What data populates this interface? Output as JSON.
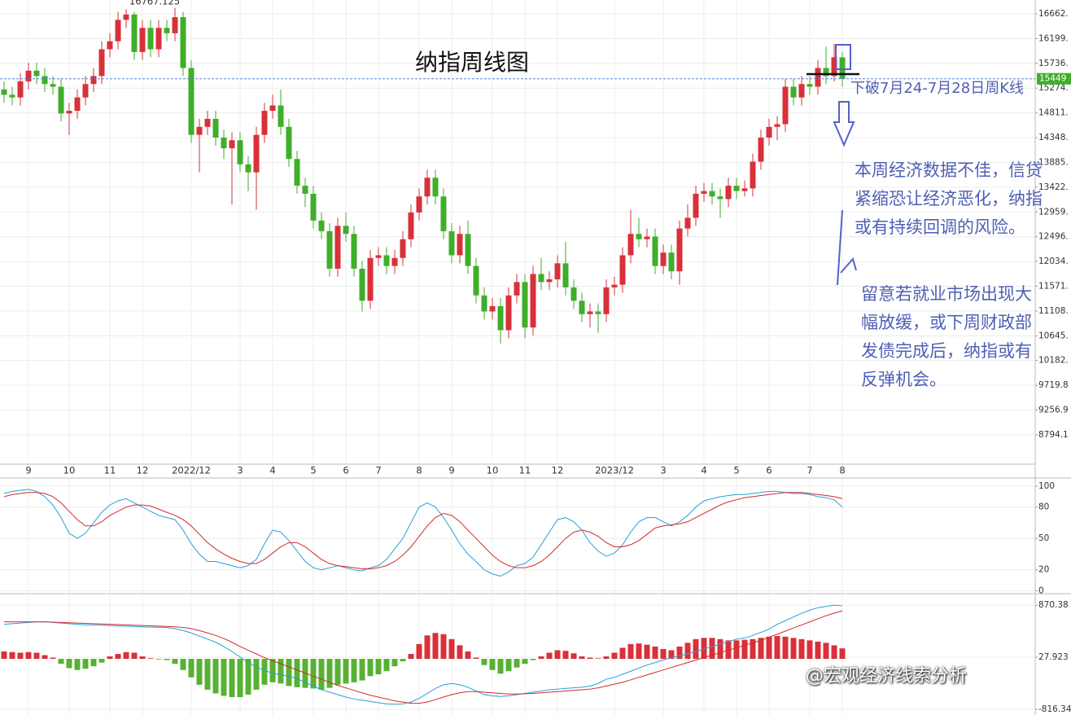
{
  "chart_data": [
    {
      "type": "candlestick",
      "title": "纳指周线图",
      "categories": [
        null,
        null,
        null,
        "9",
        null,
        null,
        null,
        null,
        "10",
        null,
        null,
        null,
        null,
        "11",
        null,
        null,
        null,
        "12",
        null,
        null,
        null,
        null,
        null,
        "2022/12",
        null,
        null,
        null,
        null,
        null,
        "3",
        null,
        null,
        null,
        "4",
        null,
        null,
        null,
        null,
        "5",
        null,
        null,
        null,
        "6",
        null,
        null,
        null,
        "7",
        null,
        null,
        null,
        null,
        "8",
        null,
        null,
        null,
        "9",
        null,
        null,
        null,
        null,
        "10",
        null,
        null,
        null,
        "11",
        null,
        null,
        null,
        "12",
        null,
        null,
        null,
        null,
        null,
        null,
        "2023/12",
        null,
        null,
        null,
        null,
        null,
        "3",
        null,
        null,
        null,
        null,
        "4",
        null,
        null,
        null,
        "5",
        null,
        null,
        null,
        "6",
        null,
        null,
        null,
        null,
        "7",
        null,
        null,
        null,
        "8"
      ],
      "open": [
        15250,
        15150,
        15100,
        15400,
        15600,
        15500,
        15350,
        15300,
        14800,
        14850,
        15100,
        15350,
        15500,
        16000,
        16150,
        16550,
        16650,
        15950,
        16400,
        16000,
        16400,
        16300,
        16600,
        15650,
        14400,
        14550,
        14700,
        14350,
        14150,
        14300,
        13850,
        13700,
        14400,
        14850,
        14950,
        14550,
        13950,
        13450,
        13300,
        12800,
        12600,
        11900,
        12700,
        12550,
        11900,
        11300,
        12100,
        12150,
        11950,
        12100,
        12450,
        12950,
        13250,
        13600,
        13250,
        12600,
        12150,
        12550,
        11950,
        11400,
        11100,
        11200,
        10750,
        11400,
        11650,
        10800,
        11800,
        11650,
        11700,
        12000,
        11550,
        11300,
        11050,
        11100,
        11050,
        11550,
        11600,
        12150,
        12550,
        12450,
        12500,
        11950,
        12200,
        11850,
        12650,
        12850,
        13300,
        13350,
        13250,
        13200,
        13450,
        13350,
        13400,
        13900,
        14350,
        14550,
        14600,
        15300,
        15100,
        15350,
        15300,
        15650,
        15500,
        15850
      ],
      "high": [
        15400,
        15300,
        15550,
        15750,
        15750,
        15650,
        15500,
        15450,
        15000,
        15250,
        15500,
        15650,
        16150,
        16300,
        16700,
        16750,
        16700,
        16550,
        16550,
        16550,
        16550,
        16767.125,
        16700,
        15800,
        14700,
        14850,
        14850,
        14500,
        14450,
        14450,
        14000,
        14550,
        15000,
        15150,
        15250,
        14700,
        14100,
        13600,
        13450,
        12950,
        12750,
        12850,
        12950,
        12700,
        12050,
        12250,
        12300,
        12300,
        12250,
        12600,
        13100,
        13400,
        13750,
        13750,
        13400,
        12750,
        12700,
        12800,
        12100,
        11550,
        11350,
        11350,
        11550,
        11800,
        11800,
        11950,
        12100,
        11850,
        12150,
        12400,
        11700,
        11450,
        11250,
        11250,
        11700,
        11750,
        12300,
        13000,
        12850,
        12650,
        12650,
        12350,
        12350,
        12800,
        13100,
        13450,
        13500,
        13500,
        13400,
        13600,
        13600,
        13550,
        14050,
        14500,
        14700,
        14750,
        15450,
        15450,
        15500,
        15500,
        15800,
        16050,
        16100,
        15950
      ],
      "low": [
        15000,
        14950,
        14950,
        15250,
        15350,
        15200,
        15150,
        14650,
        14400,
        14700,
        14950,
        15200,
        15350,
        15850,
        16000,
        16400,
        15800,
        15800,
        15850,
        15850,
        16150,
        16150,
        15500,
        14250,
        13700,
        14400,
        14200,
        13950,
        13100,
        13700,
        13350,
        13000,
        14250,
        14700,
        14400,
        13800,
        13300,
        13050,
        12650,
        12450,
        11750,
        11750,
        12400,
        11750,
        11100,
        11150,
        11950,
        11800,
        11800,
        11950,
        12300,
        12800,
        13100,
        13100,
        12450,
        12000,
        12000,
        11800,
        11250,
        10950,
        10950,
        10500,
        10600,
        11250,
        10600,
        10650,
        11500,
        11500,
        11550,
        11400,
        11150,
        10900,
        10800,
        10700,
        10900,
        11400,
        11450,
        12000,
        12300,
        12300,
        11800,
        11800,
        11700,
        11600,
        12500,
        12700,
        13150,
        13100,
        12850,
        13050,
        13200,
        13250,
        13250,
        13750,
        14200,
        14300,
        14450,
        14950,
        14950,
        15150,
        15150,
        15350,
        15400,
        15300
      ],
      "close": [
        15150,
        15100,
        15400,
        15600,
        15500,
        15350,
        15300,
        14800,
        14850,
        15100,
        15350,
        15500,
        16000,
        16150,
        16550,
        16650,
        15950,
        16400,
        16000,
        16400,
        16300,
        16600,
        15650,
        14400,
        14550,
        14700,
        14350,
        14150,
        14300,
        13850,
        13700,
        14400,
        14850,
        14950,
        14550,
        13950,
        13450,
        13300,
        12800,
        12600,
        11900,
        12700,
        12550,
        11900,
        11300,
        12100,
        12150,
        11950,
        12100,
        12450,
        12950,
        13250,
        13600,
        13250,
        12600,
        12150,
        12550,
        11950,
        11400,
        11100,
        11200,
        10750,
        11400,
        11650,
        10800,
        11800,
        11650,
        11700,
        12000,
        11550,
        11300,
        11050,
        11100,
        11050,
        11550,
        11600,
        12150,
        12550,
        12450,
        12500,
        11950,
        12200,
        11850,
        12650,
        12850,
        13300,
        13350,
        13250,
        13200,
        13450,
        13350,
        13400,
        13900,
        14350,
        14550,
        14600,
        15300,
        15100,
        15350,
        15300,
        15650,
        15500,
        15850,
        15449
      ],
      "up_color": "#d9303a",
      "down_color": "#3fae2a",
      "last_color": "#3fae2a",
      "last_line_color": "#5a7fd6",
      "ylim": [
        8246,
        16921
      ],
      "yticks": [
        {
          "value": 8794.1,
          "label": "8794.1"
        },
        {
          "value": 9256.95,
          "label": "9256.9"
        },
        {
          "value": 9719.81,
          "label": "9719.8"
        },
        {
          "value": 10182.66,
          "label": "10182."
        },
        {
          "value": 10645.51,
          "label": "10645."
        },
        {
          "value": 11108.37,
          "label": "11108."
        },
        {
          "value": 11571.22,
          "label": "11571."
        },
        {
          "value": 12034.07,
          "label": "12034."
        },
        {
          "value": 12496.92,
          "label": "12496."
        },
        {
          "value": 12959.78,
          "label": "12959."
        },
        {
          "value": 13422.63,
          "label": "13422."
        },
        {
          "value": 13885.48,
          "label": "13885."
        },
        {
          "value": 14348.34,
          "label": "14348."
        },
        {
          "value": 14811.19,
          "label": "14811."
        },
        {
          "value": 15274.04,
          "label": "15274."
        },
        {
          "value": 15736.89,
          "label": "15736."
        },
        {
          "value": 16199.75,
          "label": "16199."
        },
        {
          "value": 16662.6,
          "label": "16662."
        }
      ],
      "grid": true,
      "annotations": {
        "break_note": "下破7月24-7月28日周K线",
        "note_1": "本周经济数据不佳，信贷紧缩恐让经济恶化，纳指或有持续回调的风险。",
        "note_2": "留意若就业市场出现大幅放缓，或下周财政部发债完成后，纳指或有反弹机会。"
      }
    },
    {
      "type": "line",
      "series": [
        {
          "color": "#2a9fd8",
          "values": [
            93,
            95,
            96,
            97,
            95,
            90,
            82,
            70,
            55,
            50,
            55,
            65,
            75,
            82,
            86,
            88,
            84,
            80,
            76,
            72,
            70,
            68,
            58,
            45,
            35,
            28,
            28,
            26,
            24,
            22,
            24,
            30,
            45,
            58,
            56,
            48,
            38,
            28,
            22,
            20,
            22,
            24,
            22,
            20,
            19,
            22,
            24,
            30,
            40,
            50,
            65,
            80,
            84,
            80,
            70,
            58,
            45,
            35,
            28,
            20,
            16,
            14,
            18,
            24,
            26,
            32,
            44,
            56,
            68,
            70,
            66,
            58,
            46,
            38,
            33,
            36,
            44,
            56,
            66,
            70,
            70,
            66,
            62,
            66,
            72,
            80,
            86,
            88,
            90,
            91,
            92,
            92,
            93,
            94,
            95,
            95,
            94,
            93,
            93,
            92,
            90,
            89,
            87,
            80
          ]
        },
        {
          "color": "#d42a2a",
          "values": [
            90,
            92,
            93,
            94,
            94,
            93,
            90,
            84,
            76,
            68,
            62,
            62,
            66,
            72,
            76,
            80,
            82,
            82,
            81,
            78,
            75,
            72,
            68,
            62,
            54,
            46,
            40,
            35,
            31,
            28,
            26,
            26,
            30,
            36,
            42,
            46,
            46,
            42,
            36,
            30,
            26,
            24,
            23,
            22,
            21,
            21,
            22,
            24,
            28,
            34,
            42,
            52,
            62,
            70,
            74,
            72,
            66,
            58,
            50,
            42,
            34,
            28,
            24,
            22,
            22,
            24,
            28,
            34,
            42,
            50,
            56,
            58,
            56,
            52,
            46,
            42,
            42,
            44,
            48,
            54,
            60,
            62,
            63,
            64,
            66,
            70,
            74,
            78,
            82,
            85,
            87,
            89,
            90,
            91,
            92,
            93,
            94,
            94,
            94,
            93,
            92,
            91,
            90,
            88
          ]
        }
      ],
      "ylim": [
        -2,
        107
      ],
      "yticks": [
        0,
        20,
        50,
        80,
        100
      ],
      "grid": true
    },
    {
      "type": "macd",
      "series": [
        {
          "color": "#2a9fd8",
          "values": [
            560,
            570,
            580,
            590,
            600,
            600,
            590,
            580,
            570,
            560,
            550,
            550,
            545,
            540,
            535,
            530,
            525,
            520,
            515,
            512,
            510,
            490,
            460,
            420,
            370,
            320,
            270,
            200,
            120,
            30,
            -60,
            -130,
            -190,
            -230,
            -260,
            -280,
            -320,
            -380,
            -440,
            -500,
            -540,
            -580,
            -620,
            -650,
            -670,
            -690,
            -710,
            -730,
            -735,
            -730,
            -700,
            -640,
            -560,
            -480,
            -420,
            -400,
            -420,
            -460,
            -520,
            -580,
            -600,
            -610,
            -600,
            -580,
            -560,
            -540,
            -520,
            -500,
            -490,
            -480,
            -470,
            -460,
            -440,
            -400,
            -330,
            -300,
            -250,
            -200,
            -150,
            -100,
            -60,
            -20,
            20,
            50,
            80,
            120,
            160,
            200,
            240,
            280,
            320,
            340,
            380,
            430,
            480,
            560,
            620,
            680,
            740,
            790,
            830,
            850,
            870,
            860
          ]
        },
        {
          "color": "#d42a2a",
          "values": [
            600,
            600,
            600,
            600,
            600,
            600,
            595,
            590,
            585,
            580,
            575,
            570,
            565,
            560,
            555,
            550,
            545,
            540,
            535,
            530,
            525,
            520,
            510,
            490,
            460,
            420,
            380,
            330,
            270,
            200,
            140,
            80,
            20,
            -30,
            -80,
            -130,
            -180,
            -230,
            -280,
            -330,
            -380,
            -430,
            -470,
            -510,
            -550,
            -590,
            -620,
            -650,
            -680,
            -700,
            -720,
            -720,
            -700,
            -660,
            -620,
            -580,
            -550,
            -530,
            -530,
            -540,
            -550,
            -560,
            -570,
            -570,
            -565,
            -560,
            -550,
            -540,
            -530,
            -520,
            -510,
            -500,
            -490,
            -470,
            -440,
            -410,
            -380,
            -340,
            -300,
            -260,
            -220,
            -180,
            -140,
            -100,
            -60,
            -20,
            20,
            60,
            100,
            140,
            180,
            220,
            260,
            300,
            350,
            400,
            450,
            500,
            550,
            600,
            650,
            700,
            740,
            780
          ]
        }
      ],
      "histogram": {
        "up_color": "#d9303a",
        "down_color": "#57b133",
        "values": [
          120,
          110,
          100,
          110,
          100,
          60,
          20,
          -80,
          -150,
          -180,
          -160,
          -120,
          -60,
          40,
          80,
          110,
          100,
          40,
          10,
          -10,
          -20,
          -80,
          -180,
          -300,
          -420,
          -500,
          -560,
          -600,
          -620,
          -620,
          -580,
          -500,
          -420,
          -380,
          -400,
          -440,
          -460,
          -470,
          -480,
          -500,
          -470,
          -420,
          -400,
          -380,
          -350,
          -280,
          -250,
          -200,
          -120,
          -40,
          80,
          240,
          380,
          420,
          400,
          320,
          220,
          120,
          20,
          -100,
          -180,
          -240,
          -200,
          -140,
          -80,
          -20,
          40,
          100,
          140,
          130,
          90,
          40,
          20,
          10,
          40,
          100,
          180,
          240,
          250,
          230,
          200,
          160,
          140,
          200,
          260,
          320,
          340,
          340,
          320,
          300,
          300,
          310,
          320,
          340,
          360,
          370,
          360,
          340,
          320,
          300,
          280,
          260,
          220,
          170
        ]
      },
      "ylim": [
        -910,
        1044
      ],
      "yticks": [
        -816.34,
        27.923,
        870.38
      ],
      "grid": true
    }
  ],
  "watermark": "@宏观经济线索分析"
}
